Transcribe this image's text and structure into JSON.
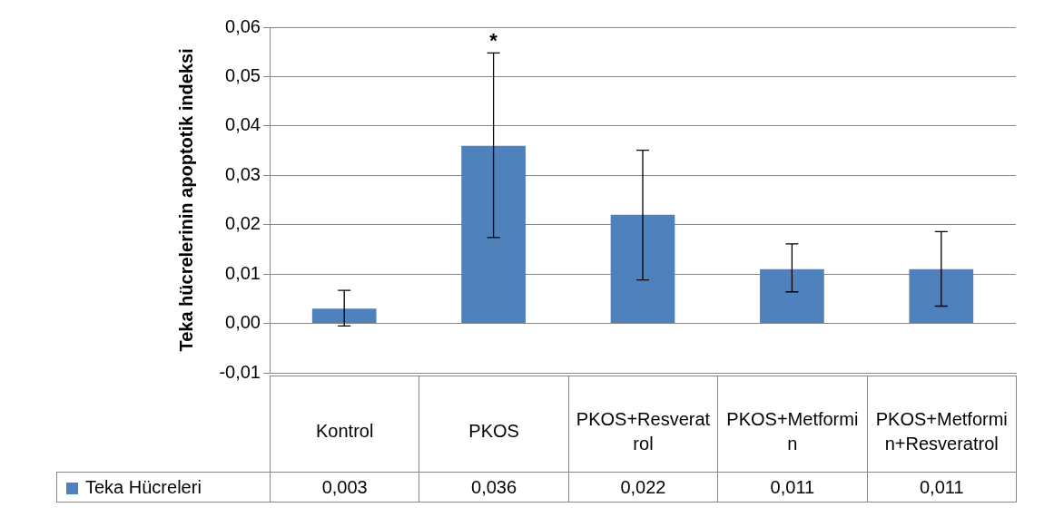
{
  "chart_data": {
    "type": "bar",
    "ylabel": "Teka hücrelerinin apoptotik indeksi",
    "categories": [
      "Kontrol",
      "PKOS",
      "PKOS+Resveratrol",
      "PKOS+Metformin",
      "PKOS+Metformin+Resveratrol"
    ],
    "series": [
      {
        "name": "Teka Hücreleri",
        "color": "#4f81bd",
        "values": [
          0.003,
          0.036,
          0.022,
          0.011,
          0.011
        ],
        "value_labels": [
          "0,003",
          "0,036",
          "0,022",
          "0,011",
          "0,011"
        ],
        "errors": [
          [
            -0.0005,
            0.0067
          ],
          [
            0.0174,
            0.0548
          ],
          [
            0.0088,
            0.0351
          ],
          [
            0.0064,
            0.0161
          ],
          [
            0.0035,
            0.0186
          ]
        ]
      }
    ],
    "ylim": [
      -0.01,
      0.06
    ],
    "yticks": [
      {
        "value": -0.01,
        "label": "-0,01"
      },
      {
        "value": 0,
        "label": "0,00"
      },
      {
        "value": 0.01,
        "label": "0,01"
      },
      {
        "value": 0.02,
        "label": "0,02"
      },
      {
        "value": 0.03,
        "label": "0,03"
      },
      {
        "value": 0.04,
        "label": "0,04"
      },
      {
        "value": 0.05,
        "label": "0,05"
      },
      {
        "value": 0.06,
        "label": "0,06"
      }
    ],
    "grid": "y",
    "legend": "bottom",
    "annotations": [
      "*"
    ]
  }
}
